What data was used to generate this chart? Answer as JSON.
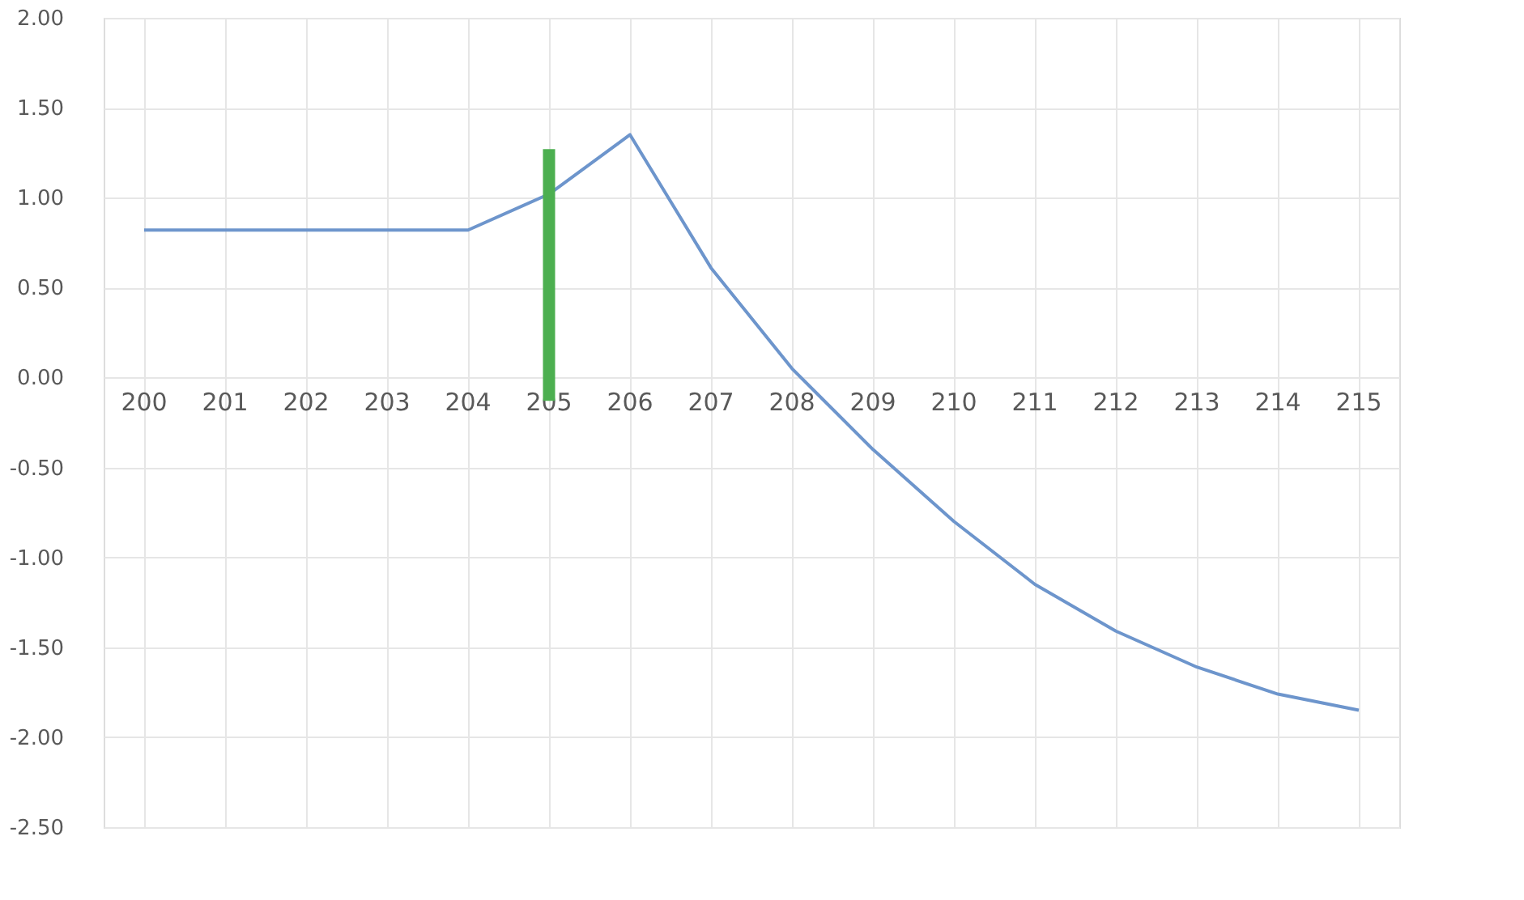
{
  "chart_data": {
    "type": "line",
    "categories": [
      "200",
      "201",
      "202",
      "203",
      "204",
      "205",
      "206",
      "207",
      "208",
      "209",
      "210",
      "211",
      "212",
      "213",
      "214",
      "215"
    ],
    "series": [
      {
        "color": "#6d95cc",
        "values": [
          0.82,
          0.82,
          0.82,
          0.82,
          0.82,
          1.02,
          1.35,
          0.61,
          0.05,
          -0.4,
          -0.8,
          -1.15,
          -1.41,
          -1.61,
          -1.76,
          -1.85
        ]
      },
      {
        "type": "bar",
        "color": "#4caf50",
        "values": [
          null,
          null,
          null,
          null,
          null,
          1.4,
          null,
          null,
          null,
          null,
          null,
          null,
          null,
          null,
          null,
          null
        ],
        "base": [
          null,
          null,
          null,
          null,
          null,
          -0.13,
          null,
          null,
          null,
          null,
          null,
          null,
          null,
          null,
          null,
          null
        ]
      }
    ],
    "ylim": [
      -2.5,
      2.0
    ],
    "yticks": [
      {
        "value": -2.5,
        "label": "-2.50"
      },
      {
        "value": -2.0,
        "label": "-2.00"
      },
      {
        "value": -1.5,
        "label": "-1.50"
      },
      {
        "value": -1.0,
        "label": "-1.00"
      },
      {
        "value": -0.5,
        "label": "-0.50"
      },
      {
        "value": 0,
        "label": "0.00"
      },
      {
        "value": 0.5,
        "label": "0.50"
      },
      {
        "value": 1.0,
        "label": "1.00"
      },
      {
        "value": 1.5,
        "label": "1.50"
      },
      {
        "value": 2.0,
        "label": "2.00"
      }
    ],
    "grid": true
  }
}
